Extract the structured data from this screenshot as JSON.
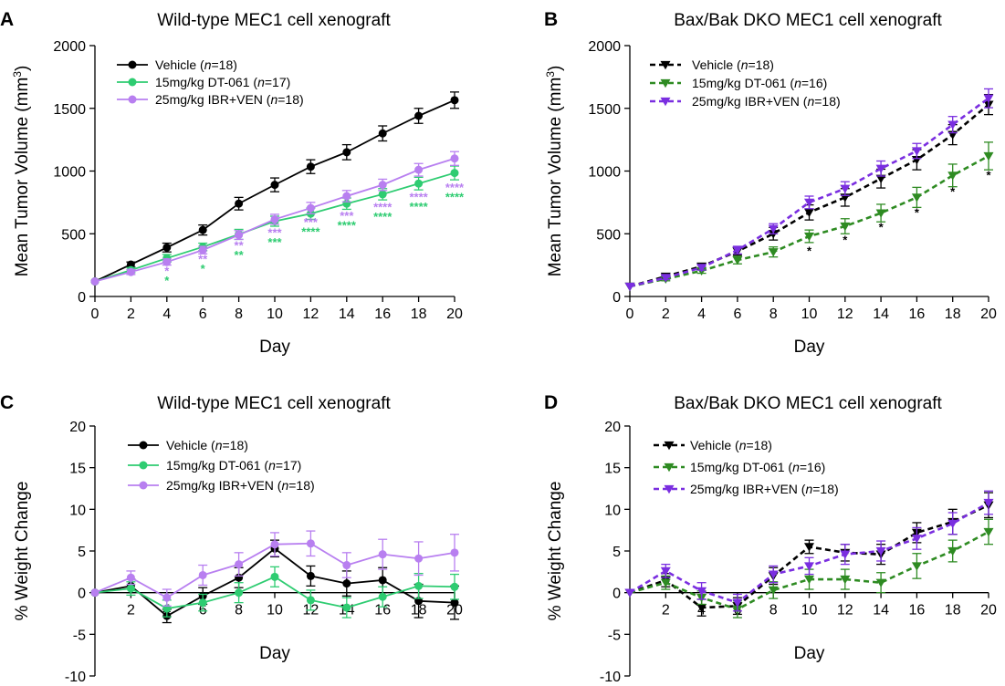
{
  "chart_data": [
    {
      "panel": "A",
      "type": "line",
      "title": "Wild-type MEC1 cell xenograft",
      "xlabel": "Day",
      "ylabel": "Mean Tumor Volume (mm",
      "ylabel_sup": "3",
      "ylabel_end": ")",
      "xlim": [
        0,
        20
      ],
      "ylim": [
        0,
        2000
      ],
      "xticks": [
        0,
        2,
        4,
        6,
        8,
        10,
        12,
        14,
        16,
        18,
        20
      ],
      "yticks": [
        0,
        500,
        1000,
        1500,
        2000
      ],
      "series": [
        {
          "legend_pre": "Vehicle (",
          "legend_n": "n",
          "legend_post": "=18)",
          "color": "#000000",
          "marker": "circle",
          "dash": false,
          "x": [
            0,
            2,
            4,
            6,
            8,
            10,
            12,
            14,
            16,
            18,
            20
          ],
          "y": [
            120,
            255,
            390,
            530,
            740,
            890,
            1035,
            1150,
            1300,
            1440,
            1565
          ],
          "err": [
            0,
            20,
            35,
            40,
            50,
            55,
            55,
            60,
            60,
            60,
            65
          ]
        },
        {
          "legend_pre": "15mg/kg DT-061 (",
          "legend_n": "n",
          "legend_post": "=17)",
          "color": "#2ecc71",
          "marker": "circle",
          "dash": false,
          "x": [
            0,
            2,
            4,
            6,
            8,
            10,
            12,
            14,
            16,
            18,
            20
          ],
          "y": [
            120,
            210,
            305,
            395,
            495,
            600,
            660,
            740,
            815,
            900,
            985
          ],
          "err": [
            0,
            20,
            30,
            30,
            40,
            40,
            45,
            45,
            45,
            50,
            55
          ]
        },
        {
          "legend_pre": "25mg/kg IBR+VEN (",
          "legend_n": "n",
          "legend_post": "=18)",
          "color": "#b87ff0",
          "marker": "circle",
          "dash": false,
          "x": [
            0,
            2,
            4,
            6,
            8,
            10,
            12,
            14,
            16,
            18,
            20
          ],
          "y": [
            120,
            195,
            275,
            370,
            490,
            615,
            705,
            800,
            890,
            1010,
            1100
          ],
          "err": [
            0,
            20,
            25,
            30,
            35,
            40,
            45,
            45,
            45,
            50,
            55
          ]
        }
      ],
      "annotations": [
        {
          "x": 4,
          "y": 170,
          "text": "*",
          "color": "#b87ff0"
        },
        {
          "x": 4,
          "y": 95,
          "text": "*",
          "color": "#2ecc71"
        },
        {
          "x": 6,
          "y": 265,
          "text": "**",
          "color": "#b87ff0"
        },
        {
          "x": 6,
          "y": 190,
          "text": "*",
          "color": "#2ecc71"
        },
        {
          "x": 8,
          "y": 375,
          "text": "**",
          "color": "#b87ff0"
        },
        {
          "x": 8,
          "y": 300,
          "text": "**",
          "color": "#2ecc71"
        },
        {
          "x": 10,
          "y": 475,
          "text": "***",
          "color": "#b87ff0"
        },
        {
          "x": 10,
          "y": 400,
          "text": "***",
          "color": "#2ecc71"
        },
        {
          "x": 12,
          "y": 560,
          "text": "***",
          "color": "#b87ff0"
        },
        {
          "x": 12,
          "y": 485,
          "text": "****",
          "color": "#2ecc71"
        },
        {
          "x": 14,
          "y": 610,
          "text": "***",
          "color": "#b87ff0"
        },
        {
          "x": 14,
          "y": 535,
          "text": "****",
          "color": "#2ecc71"
        },
        {
          "x": 16,
          "y": 680,
          "text": "****",
          "color": "#b87ff0"
        },
        {
          "x": 16,
          "y": 605,
          "text": "****",
          "color": "#2ecc71"
        },
        {
          "x": 18,
          "y": 760,
          "text": "****",
          "color": "#b87ff0"
        },
        {
          "x": 18,
          "y": 685,
          "text": "****",
          "color": "#2ecc71"
        },
        {
          "x": 20,
          "y": 835,
          "text": "****",
          "color": "#b87ff0"
        },
        {
          "x": 20,
          "y": 760,
          "text": "****",
          "color": "#2ecc71"
        }
      ]
    },
    {
      "panel": "B",
      "type": "line",
      "title": "Bax/Bak DKO MEC1 cell xenograft",
      "xlabel": "Day",
      "ylabel": "Mean Tumor Volume (mm",
      "ylabel_sup": "3",
      "ylabel_end": ")",
      "xlim": [
        0,
        20
      ],
      "ylim": [
        0,
        2000
      ],
      "xticks": [
        0,
        2,
        4,
        6,
        8,
        10,
        12,
        14,
        16,
        18,
        20
      ],
      "yticks": [
        0,
        500,
        1000,
        1500,
        2000
      ],
      "series": [
        {
          "legend_pre": "Vehicle (",
          "legend_n": "n",
          "legend_post": "=18)",
          "color": "#000000",
          "marker": "triangle-down",
          "dash": true,
          "x": [
            0,
            2,
            4,
            6,
            8,
            10,
            12,
            14,
            16,
            18,
            20
          ],
          "y": [
            80,
            160,
            240,
            360,
            500,
            670,
            790,
            940,
            1090,
            1290,
            1530
          ],
          "err": [
            0,
            15,
            25,
            30,
            50,
            60,
            70,
            75,
            80,
            80,
            80
          ]
        },
        {
          "legend_pre": "15mg/kg DT-061 (",
          "legend_n": "n",
          "legend_post": "=16)",
          "color": "#2e8b22",
          "marker": "triangle-down",
          "dash": true,
          "x": [
            0,
            2,
            4,
            6,
            8,
            10,
            12,
            14,
            16,
            18,
            20
          ],
          "y": [
            80,
            140,
            205,
            290,
            355,
            480,
            560,
            665,
            790,
            965,
            1120
          ],
          "err": [
            0,
            15,
            20,
            30,
            40,
            50,
            60,
            70,
            80,
            90,
            110
          ]
        },
        {
          "legend_pre": "25mg/kg IBR+VEN (",
          "legend_n": "n",
          "legend_post": "=18)",
          "color": "#7a2ee0",
          "marker": "triangle-down",
          "dash": true,
          "x": [
            0,
            2,
            4,
            6,
            8,
            10,
            12,
            14,
            16,
            18,
            20
          ],
          "y": [
            80,
            150,
            230,
            370,
            540,
            750,
            860,
            1020,
            1160,
            1370,
            1580
          ],
          "err": [
            0,
            15,
            20,
            30,
            40,
            50,
            55,
            60,
            60,
            65,
            75
          ]
        }
      ],
      "annotations": [
        {
          "x": 10,
          "y": 330,
          "text": "*",
          "color": "#000000"
        },
        {
          "x": 12,
          "y": 420,
          "text": "*",
          "color": "#000000"
        },
        {
          "x": 14,
          "y": 520,
          "text": "*",
          "color": "#000000"
        },
        {
          "x": 16,
          "y": 635,
          "text": "*",
          "color": "#000000"
        },
        {
          "x": 18,
          "y": 805,
          "text": "*",
          "color": "#000000"
        },
        {
          "x": 20,
          "y": 935,
          "text": "*",
          "color": "#000000"
        }
      ]
    },
    {
      "panel": "C",
      "type": "line",
      "title": "Wild-type MEC1 cell xenograft",
      "xlabel": "Day",
      "ylabel": "% Weight Change",
      "xlim": [
        0,
        20
      ],
      "ylim": [
        -10,
        20
      ],
      "xticks": [
        2,
        4,
        6,
        8,
        10,
        12,
        14,
        16,
        18,
        20
      ],
      "yticks": [
        -10,
        -5,
        0,
        5,
        10,
        15,
        20
      ],
      "series": [
        {
          "legend_pre": "Vehicle (",
          "legend_n": "n",
          "legend_post": "=18)",
          "color": "#000000",
          "marker": "circle",
          "dash": false,
          "x": [
            0,
            2,
            4,
            6,
            8,
            10,
            12,
            14,
            16,
            18,
            20
          ],
          "y": [
            0,
            0.8,
            -2.8,
            -0.4,
            1.8,
            5.3,
            2.0,
            1.1,
            1.5,
            -1.0,
            -1.2
          ],
          "err": [
            0,
            0.8,
            0.8,
            1.0,
            1.2,
            1.0,
            1.2,
            1.5,
            1.5,
            2.0,
            2.0
          ]
        },
        {
          "legend_pre": "15mg/kg DT-061 (",
          "legend_n": "n",
          "legend_post": "=17)",
          "color": "#2ecc71",
          "marker": "circle",
          "dash": false,
          "x": [
            0,
            2,
            4,
            6,
            8,
            10,
            12,
            14,
            16,
            18,
            20
          ],
          "y": [
            0,
            0.5,
            -1.9,
            -1.2,
            0.0,
            1.9,
            -0.9,
            -1.8,
            -0.5,
            0.8,
            0.7
          ],
          "err": [
            0,
            0.8,
            1.0,
            1.0,
            1.2,
            1.2,
            1.2,
            1.2,
            1.2,
            1.5,
            1.5
          ]
        },
        {
          "legend_pre": "25mg/kg IBR+VEN (",
          "legend_n": "n",
          "legend_post": "=18)",
          "color": "#b87ff0",
          "marker": "circle",
          "dash": false,
          "x": [
            0,
            2,
            4,
            6,
            8,
            10,
            12,
            14,
            16,
            18,
            20
          ],
          "y": [
            0,
            1.8,
            -0.6,
            2.1,
            3.4,
            5.8,
            5.9,
            3.3,
            4.6,
            4.1,
            4.8
          ],
          "err": [
            0,
            0.8,
            1.0,
            1.2,
            1.4,
            1.4,
            1.5,
            1.5,
            1.8,
            2.0,
            2.2
          ]
        }
      ],
      "annotations": []
    },
    {
      "panel": "D",
      "type": "line",
      "title": "Bax/Bak DKO MEC1 cell xenograft",
      "xlabel": "Day",
      "ylabel": "% Weight Change",
      "xlim": [
        0,
        20
      ],
      "ylim": [
        -10,
        20
      ],
      "xticks": [
        2,
        4,
        6,
        8,
        10,
        12,
        14,
        16,
        18,
        20
      ],
      "yticks": [
        -10,
        -5,
        0,
        5,
        10,
        15,
        20
      ],
      "series": [
        {
          "legend_pre": "Vehicle (",
          "legend_n": "n",
          "legend_post": "=18)",
          "color": "#000000",
          "marker": "triangle-down",
          "dash": true,
          "x": [
            0,
            2,
            4,
            6,
            8,
            10,
            12,
            14,
            16,
            18,
            20
          ],
          "y": [
            0,
            1.5,
            -1.8,
            -1.6,
            2.0,
            5.5,
            4.8,
            4.6,
            7.2,
            8.5,
            10.5
          ],
          "err": [
            0,
            0.8,
            1.0,
            1.0,
            1.0,
            0.8,
            1.0,
            1.2,
            1.2,
            1.5,
            1.5
          ]
        },
        {
          "legend_pre": "15mg/kg DT-061 (",
          "legend_n": "n",
          "legend_post": "=16)",
          "color": "#2e8b22",
          "marker": "triangle-down",
          "dash": true,
          "x": [
            0,
            2,
            4,
            6,
            8,
            10,
            12,
            14,
            16,
            18,
            20
          ],
          "y": [
            0,
            1.2,
            -0.6,
            -2.0,
            0.3,
            1.6,
            1.6,
            1.2,
            3.2,
            5.0,
            7.3
          ],
          "err": [
            0,
            0.8,
            0.8,
            1.0,
            1.0,
            1.2,
            1.2,
            1.2,
            1.5,
            1.3,
            1.5
          ]
        },
        {
          "legend_pre": "25mg/kg IBR+VEN (",
          "legend_n": "n",
          "legend_post": "=18)",
          "color": "#7a2ee0",
          "marker": "triangle-down",
          "dash": true,
          "x": [
            0,
            2,
            4,
            6,
            8,
            10,
            12,
            14,
            16,
            18,
            20
          ],
          "y": [
            0,
            2.6,
            0.2,
            -1.2,
            2.2,
            3.2,
            4.6,
            5.0,
            6.5,
            8.3,
            10.8
          ],
          "err": [
            0,
            0.8,
            1.0,
            1.0,
            1.0,
            1.0,
            1.2,
            1.2,
            1.3,
            1.3,
            1.4
          ]
        }
      ],
      "annotations": []
    }
  ]
}
